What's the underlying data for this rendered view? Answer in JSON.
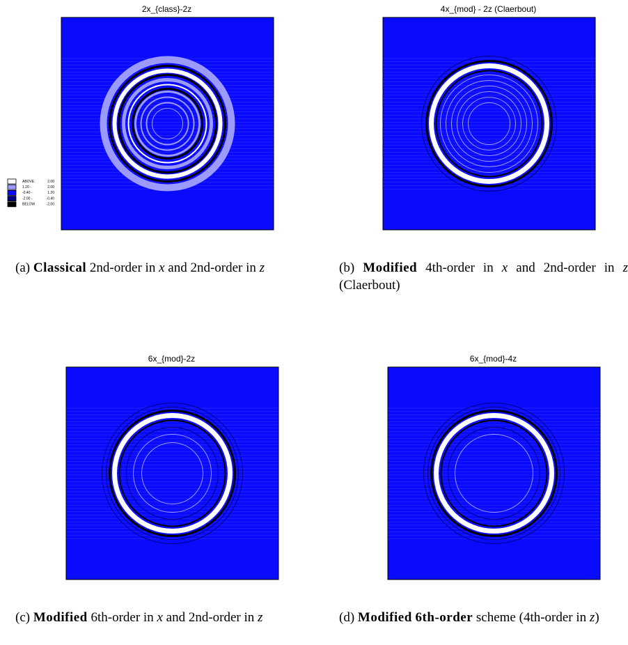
{
  "panels": [
    {
      "title": "2x_{class}-2z",
      "caption": [
        {
          "text": "(a)"
        },
        {
          "text": "Classical",
          "bold": true
        },
        {
          "text": "2nd-order in"
        },
        {
          "text": "x",
          "italic": true
        },
        {
          "text": "and 2nd-order in"
        },
        {
          "text": "z",
          "italic": true
        }
      ]
    },
    {
      "title": "4x_{mod} - 2z (Claerbout)",
      "caption": [
        {
          "text": "(b)"
        },
        {
          "text": "Modified",
          "bold": true
        },
        {
          "text": "4th-order in"
        },
        {
          "text": "x",
          "italic": true
        },
        {
          "text": "and 2nd-order in"
        },
        {
          "text": "z",
          "italic": true
        },
        {
          "text": "(Claerbout)"
        }
      ]
    },
    {
      "title": "6x_{mod}-2z",
      "caption": [
        {
          "text": "(c)"
        },
        {
          "text": "Modified",
          "bold": true
        },
        {
          "text": "6th-order in"
        },
        {
          "text": "x",
          "italic": true
        },
        {
          "text": "and 2nd-order in"
        },
        {
          "text": "z",
          "italic": true
        }
      ]
    },
    {
      "title": "6x_{mod}-4z",
      "caption": [
        {
          "text": "(d)"
        },
        {
          "text": "Modified",
          "bold": true
        },
        {
          "text": "6th-order",
          "bold": true
        },
        {
          "text": "scheme (4th-order in"
        },
        {
          "text": "z",
          "italic": true
        },
        {
          "text": ")",
          "tight": true
        }
      ]
    }
  ],
  "legend": [
    {
      "color": "#ffffff",
      "left": "ABOVE",
      "right": "2.00"
    },
    {
      "color": "#9a9aff",
      "left": "1.20 -",
      "right": "2.00"
    },
    {
      "color": "#0a0aff",
      "left": "-0.40 -",
      "right": "1.20"
    },
    {
      "color": "#000080",
      "left": "-2.00 -",
      "right": "-0.40"
    },
    {
      "color": "#000000",
      "left": "BELOW",
      "right": "-2.00"
    }
  ]
}
